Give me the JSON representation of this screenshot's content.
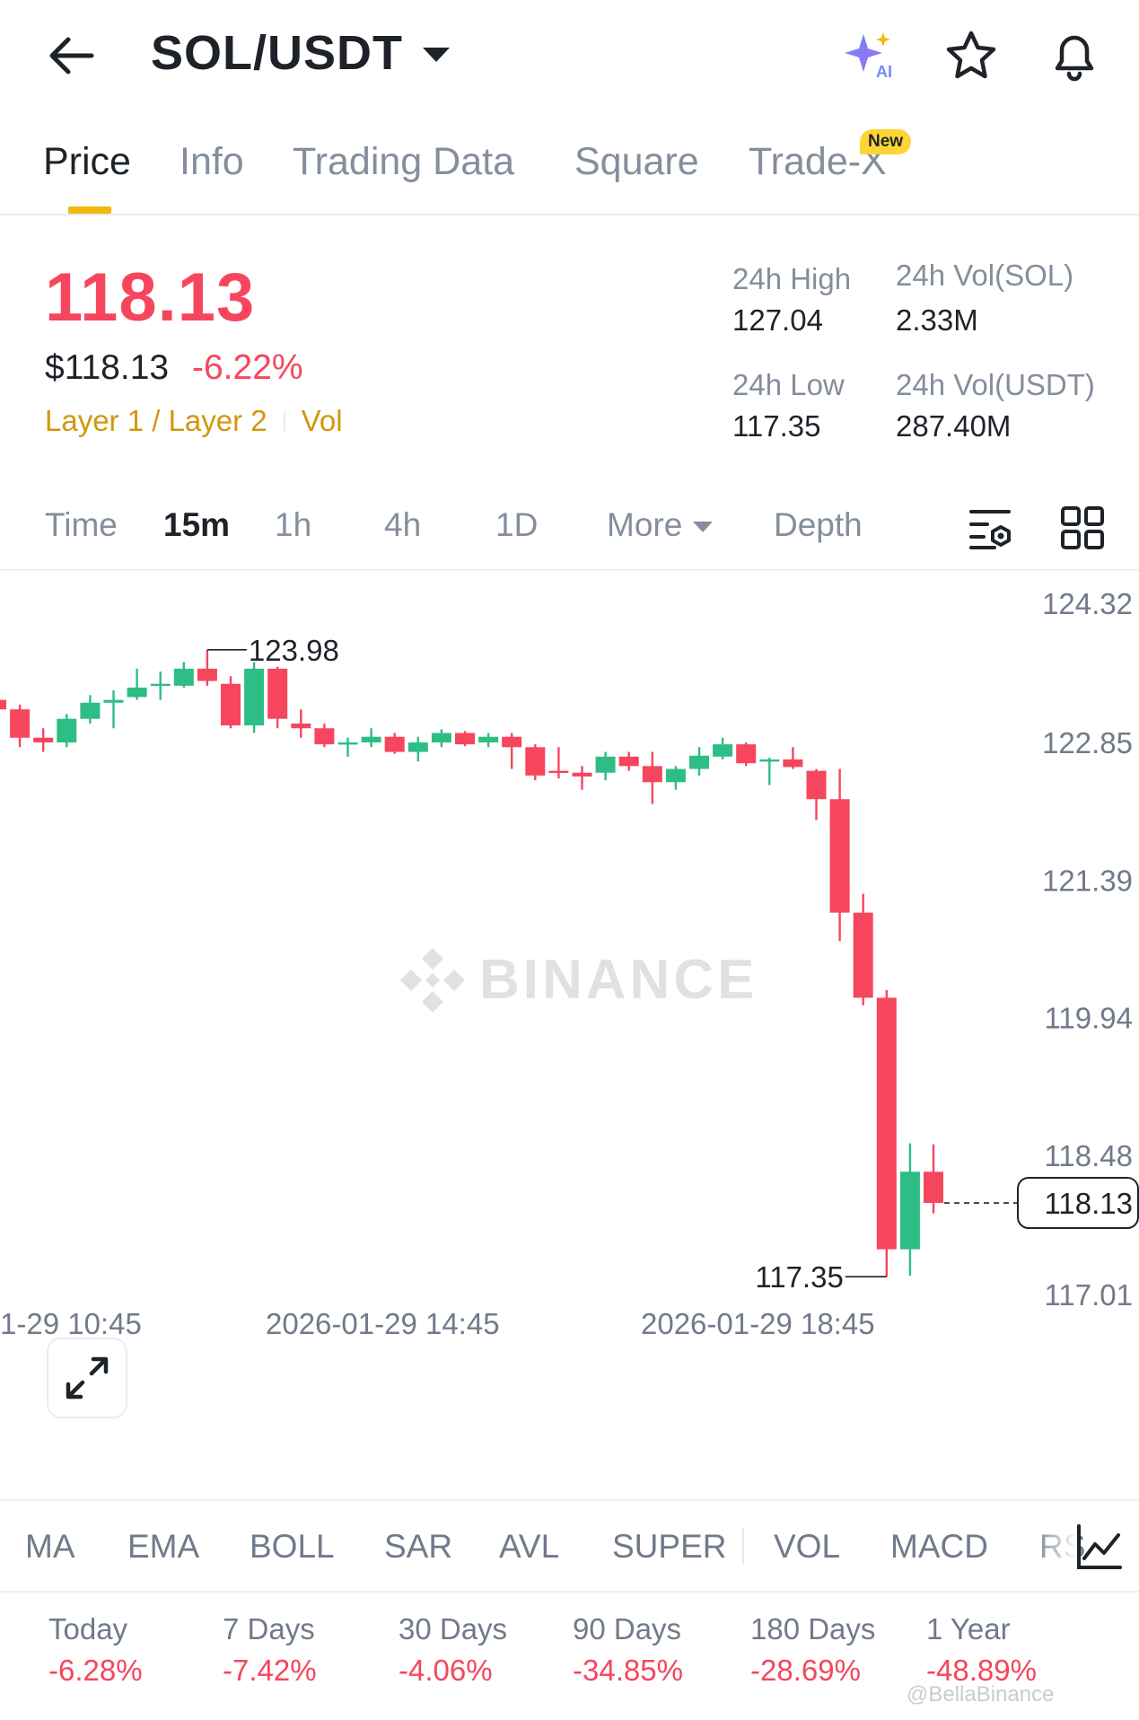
{
  "header": {
    "pair": "SOL/USDT",
    "icons": [
      "back-arrow-icon",
      "ai-sparkle-icon",
      "star-icon",
      "bell-icon"
    ],
    "ai_label": "AI"
  },
  "tabs": [
    {
      "label": "Price",
      "active": true
    },
    {
      "label": "Info"
    },
    {
      "label": "Trading Data"
    },
    {
      "label": "Square"
    },
    {
      "label": "Trade-X"
    }
  ],
  "new_badge": "New",
  "price": {
    "last": "118.13",
    "usd": "$118.13",
    "change": "-6.22%",
    "tag1": "Layer 1 / Layer 2",
    "tag2": "Vol"
  },
  "stats": {
    "high_label": "24h High",
    "high_value": "127.04",
    "low_label": "24h Low",
    "low_value": "117.35",
    "vol_sol_label": "24h Vol(SOL)",
    "vol_sol_value": "2.33M",
    "vol_usdt_label": "24h Vol(USDT)",
    "vol_usdt_value": "287.40M"
  },
  "timeframes": {
    "time": "Time",
    "m15": "15m",
    "h1": "1h",
    "h4": "4h",
    "d1": "1D",
    "more": "More",
    "depth": "Depth",
    "selected": "15m"
  },
  "chart": {
    "watermark": "BINANCE",
    "y_ticks": [
      "124.32",
      "122.85",
      "121.39",
      "119.94",
      "118.48",
      "117.01"
    ],
    "x_ticks": [
      "1-29 10:45",
      "2026-01-29 14:45",
      "2026-01-29 18:45"
    ],
    "high_marker": "123.98",
    "low_marker": "117.35",
    "last_price_tag": "118.13",
    "up_color": "#2ebd85",
    "down_color": "#f6465d"
  },
  "chart_data": {
    "type": "candlestick",
    "interval": "15m",
    "ylim": [
      117.01,
      124.32
    ],
    "candles": [
      {
        "o": 123.45,
        "c": 123.35,
        "h": 123.6,
        "l": 123.3
      },
      {
        "o": 123.35,
        "c": 123.05,
        "h": 123.4,
        "l": 122.95
      },
      {
        "o": 123.05,
        "c": 123.0,
        "h": 123.15,
        "l": 122.9
      },
      {
        "o": 123.0,
        "c": 123.25,
        "h": 123.3,
        "l": 122.95
      },
      {
        "o": 123.25,
        "c": 123.42,
        "h": 123.5,
        "l": 123.2
      },
      {
        "o": 123.42,
        "c": 123.45,
        "h": 123.55,
        "l": 123.15
      },
      {
        "o": 123.48,
        "c": 123.58,
        "h": 123.78,
        "l": 123.45
      },
      {
        "o": 123.6,
        "c": 123.62,
        "h": 123.75,
        "l": 123.45
      },
      {
        "o": 123.6,
        "c": 123.78,
        "h": 123.85,
        "l": 123.58
      },
      {
        "o": 123.78,
        "c": 123.65,
        "h": 123.98,
        "l": 123.6
      },
      {
        "o": 123.62,
        "c": 123.18,
        "h": 123.7,
        "l": 123.15
      },
      {
        "o": 123.18,
        "c": 123.78,
        "h": 123.85,
        "l": 123.1
      },
      {
        "o": 123.78,
        "c": 123.25,
        "h": 123.8,
        "l": 123.15
      },
      {
        "o": 123.2,
        "c": 123.15,
        "h": 123.35,
        "l": 123.05
      },
      {
        "o": 123.15,
        "c": 122.98,
        "h": 123.2,
        "l": 122.95
      },
      {
        "o": 122.98,
        "c": 123.0,
        "h": 123.05,
        "l": 122.85
      },
      {
        "o": 123.0,
        "c": 123.06,
        "h": 123.15,
        "l": 122.95
      },
      {
        "o": 123.06,
        "c": 122.9,
        "h": 123.1,
        "l": 122.88
      },
      {
        "o": 122.9,
        "c": 123.0,
        "h": 123.06,
        "l": 122.8
      },
      {
        "o": 123.0,
        "c": 123.1,
        "h": 123.14,
        "l": 122.95
      },
      {
        "o": 123.1,
        "c": 122.98,
        "h": 123.12,
        "l": 122.96
      },
      {
        "o": 123.0,
        "c": 123.06,
        "h": 123.1,
        "l": 122.95
      },
      {
        "o": 123.06,
        "c": 122.95,
        "h": 123.1,
        "l": 122.72
      },
      {
        "o": 122.95,
        "c": 122.65,
        "h": 122.98,
        "l": 122.6
      },
      {
        "o": 122.7,
        "c": 122.68,
        "h": 122.95,
        "l": 122.62
      },
      {
        "o": 122.68,
        "c": 122.64,
        "h": 122.75,
        "l": 122.5
      },
      {
        "o": 122.68,
        "c": 122.85,
        "h": 122.9,
        "l": 122.6
      },
      {
        "o": 122.85,
        "c": 122.75,
        "h": 122.9,
        "l": 122.7
      },
      {
        "o": 122.75,
        "c": 122.58,
        "h": 122.9,
        "l": 122.35
      },
      {
        "o": 122.58,
        "c": 122.72,
        "h": 122.75,
        "l": 122.5
      },
      {
        "o": 122.72,
        "c": 122.86,
        "h": 122.95,
        "l": 122.65
      },
      {
        "o": 122.85,
        "c": 122.98,
        "h": 123.05,
        "l": 122.82
      },
      {
        "o": 122.98,
        "c": 122.78,
        "h": 123.0,
        "l": 122.75
      },
      {
        "o": 122.8,
        "c": 122.82,
        "h": 122.84,
        "l": 122.55
      },
      {
        "o": 122.82,
        "c": 122.74,
        "h": 122.95,
        "l": 122.72
      },
      {
        "o": 122.7,
        "c": 122.4,
        "h": 122.72,
        "l": 122.18
      },
      {
        "o": 122.4,
        "c": 121.2,
        "h": 122.72,
        "l": 120.9
      },
      {
        "o": 121.2,
        "c": 120.3,
        "h": 121.4,
        "l": 120.22
      },
      {
        "o": 120.3,
        "c": 117.64,
        "h": 120.38,
        "l": 117.35
      },
      {
        "o": 117.64,
        "c": 118.46,
        "h": 118.76,
        "l": 117.36
      },
      {
        "o": 118.46,
        "c": 118.13,
        "h": 118.75,
        "l": 118.02
      }
    ]
  },
  "indicators": [
    "MA",
    "EMA",
    "BOLL",
    "SAR",
    "AVL",
    "SUPER",
    "VOL",
    "MACD",
    "RS"
  ],
  "performance": [
    {
      "label": "Today",
      "value": "-6.28%"
    },
    {
      "label": "7 Days",
      "value": "-7.42%"
    },
    {
      "label": "30 Days",
      "value": "-4.06%"
    },
    {
      "label": "90 Days",
      "value": "-34.85%"
    },
    {
      "label": "180 Days",
      "value": "-28.69%"
    },
    {
      "label": "1 Year",
      "value": "-48.89%"
    }
  ],
  "watermark_text": "@BellaBinance"
}
